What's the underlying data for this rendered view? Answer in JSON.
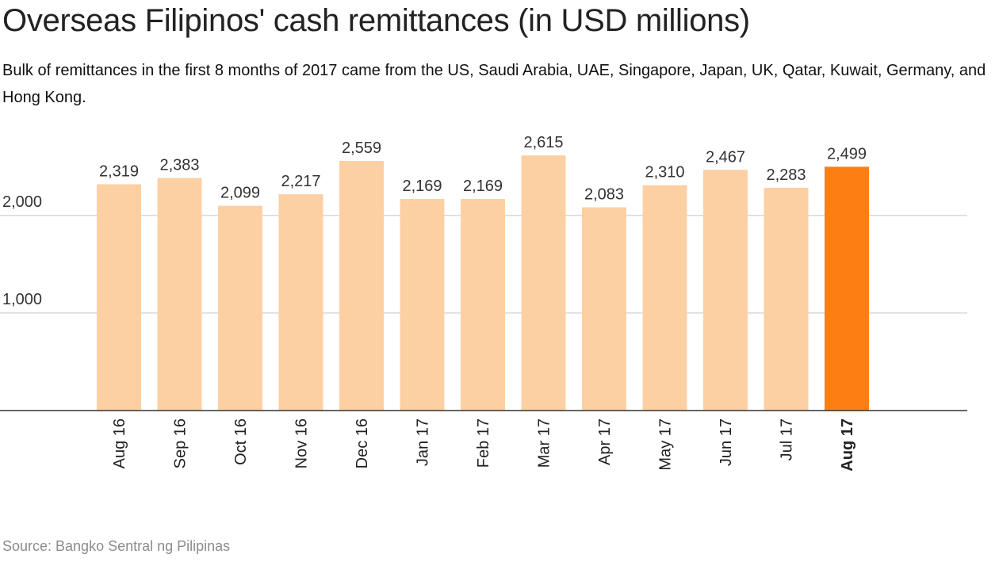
{
  "header": {
    "title": "Overseas Filipinos' cash remittances (in USD millions)",
    "subtitle": "Bulk of remittances in the first 8 months of 2017 came from the US, Saudi Arabia, UAE, Singapore, Japan, UK, Qatar, Kuwait, Germany, and Hong Kong."
  },
  "footer": {
    "source": "Source: Bangko Sentral ng Pilipinas"
  },
  "chart_data": {
    "type": "bar",
    "title": "Overseas Filipinos' cash remittances (in USD millions)",
    "subtitle": "Bulk of remittances in the first 8 months of 2017 came from the US, Saudi Arabia, UAE, Singapore, Japan, UK, Qatar, Kuwait, Germany, and Hong Kong.",
    "xlabel": "",
    "ylabel": "",
    "categories": [
      "Aug 16",
      "Sep 16",
      "Oct 16",
      "Nov 16",
      "Dec 16",
      "Jan 17",
      "Feb 17",
      "Mar 17",
      "Apr 17",
      "May 17",
      "Jun 17",
      "Jul 17",
      "Aug 17"
    ],
    "values": [
      2319,
      2383,
      2099,
      2217,
      2559,
      2169,
      2169,
      2615,
      2083,
      2310,
      2467,
      2283,
      2499
    ],
    "value_labels": [
      "2,319",
      "2,383",
      "2,099",
      "2,217",
      "2,559",
      "2,169",
      "2,169",
      "2,615",
      "2,083",
      "2,310",
      "2,467",
      "2,283",
      "2,499"
    ],
    "highlight_category": "Aug 17",
    "ylim": [
      0,
      2800
    ],
    "yticks": [
      1000,
      2000
    ],
    "ytick_labels": [
      "1,000",
      "2,000"
    ],
    "grid": true,
    "legend": "none",
    "colors": {
      "bar": "#fdd0a4",
      "highlight": "#fd7f13",
      "grid": "#d9d9d9",
      "baseline": "#333333"
    }
  }
}
